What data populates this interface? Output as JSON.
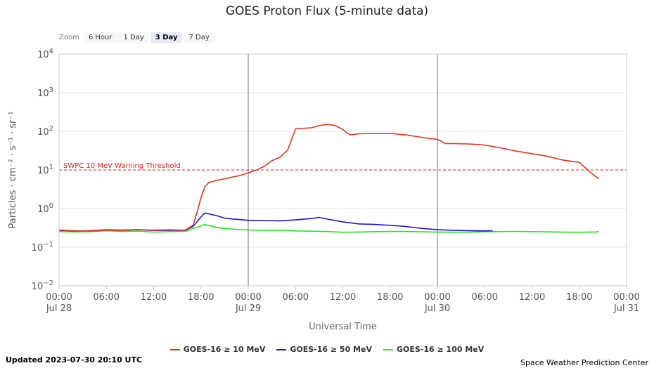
{
  "title": "GOES Proton Flux (5-minute data)",
  "zoom": {
    "label": "Zoom",
    "options": [
      "6 Hour",
      "1 Day",
      "3 Day",
      "7 Day"
    ],
    "selected": "3 Day"
  },
  "footer": {
    "updated": "Updated 2023-07-30 20:10 UTC",
    "credit": "Space Weather Prediction Center"
  },
  "chart_data": {
    "type": "line",
    "title": "GOES Proton Flux (5-minute data)",
    "xlabel": "Universal Time",
    "ylabel": "Particles · cm⁻² · s⁻¹ · sr⁻¹",
    "y_scale": "log",
    "ylim_exponents": [
      -2,
      4
    ],
    "y_ticks": [
      {
        "base": "10",
        "exp": "−2"
      },
      {
        "base": "10",
        "exp": "−1"
      },
      {
        "base": "10",
        "exp": "0"
      },
      {
        "base": "10",
        "exp": "1"
      },
      {
        "base": "10",
        "exp": "2"
      },
      {
        "base": "10",
        "exp": "3"
      },
      {
        "base": "10",
        "exp": "4"
      }
    ],
    "x_range_hours": [
      0,
      72
    ],
    "x_ticks": [
      {
        "hour": 0,
        "label": "00:00",
        "date": "Jul 28"
      },
      {
        "hour": 6,
        "label": "06:00",
        "date": ""
      },
      {
        "hour": 12,
        "label": "12:00",
        "date": ""
      },
      {
        "hour": 18,
        "label": "18:00",
        "date": ""
      },
      {
        "hour": 24,
        "label": "00:00",
        "date": "Jul 29"
      },
      {
        "hour": 30,
        "label": "06:00",
        "date": ""
      },
      {
        "hour": 36,
        "label": "12:00",
        "date": ""
      },
      {
        "hour": 42,
        "label": "18:00",
        "date": ""
      },
      {
        "hour": 48,
        "label": "00:00",
        "date": "Jul 30"
      },
      {
        "hour": 54,
        "label": "06:00",
        "date": ""
      },
      {
        "hour": 60,
        "label": "12:00",
        "date": ""
      },
      {
        "hour": 66,
        "label": "18:00",
        "date": ""
      },
      {
        "hour": 72,
        "label": "00:00",
        "date": "Jul 31"
      }
    ],
    "day_markers_hours": [
      24,
      48
    ],
    "threshold": {
      "label": "SWPC 10 MeV Warning Threshold",
      "value": 10,
      "color": "#e0211c"
    },
    "grid": true,
    "legend_position": "bottom-center",
    "series": [
      {
        "name": "GOES-16 ≥ 10 MeV",
        "color": "#e8321e",
        "x": [
          0,
          2,
          4,
          6,
          8,
          10,
          12,
          14,
          16,
          17,
          17.5,
          18,
          18.5,
          19,
          20,
          21,
          22,
          23,
          24,
          25,
          26,
          27,
          28,
          29,
          30,
          31,
          32,
          33,
          34,
          35,
          36,
          36.5,
          37,
          38,
          40,
          42,
          44,
          46,
          47,
          48,
          49,
          50,
          52,
          54,
          56,
          58,
          60,
          62,
          64,
          66,
          67,
          68,
          68.5
        ],
        "y": [
          0.28,
          0.27,
          0.27,
          0.28,
          0.27,
          0.28,
          0.27,
          0.28,
          0.28,
          0.38,
          0.8,
          1.9,
          3.6,
          4.6,
          5.3,
          5.9,
          6.7,
          7.4,
          8.5,
          9.8,
          12,
          17,
          21,
          33,
          118,
          122,
          123,
          138,
          147,
          140,
          113,
          94,
          83,
          87,
          87,
          86,
          79,
          70,
          66,
          64,
          49,
          48,
          46,
          43,
          37,
          31,
          27,
          23,
          18,
          15.5,
          10,
          6.8,
          6.0
        ]
      },
      {
        "name": "GOES-16 ≥ 50 MeV",
        "color": "#2211d8",
        "x": [
          0,
          2,
          4,
          6,
          8,
          10,
          12,
          14,
          16,
          17,
          17.5,
          18,
          18.5,
          19,
          20,
          21,
          22,
          24,
          26,
          28,
          30,
          32,
          33,
          34,
          36,
          38,
          40,
          42,
          44,
          46,
          48,
          50,
          52,
          54,
          55
        ],
        "y": [
          0.28,
          0.27,
          0.27,
          0.28,
          0.27,
          0.28,
          0.27,
          0.28,
          0.28,
          0.35,
          0.45,
          0.6,
          0.75,
          0.72,
          0.66,
          0.58,
          0.55,
          0.5,
          0.48,
          0.47,
          0.5,
          0.55,
          0.6,
          0.55,
          0.46,
          0.4,
          0.38,
          0.36,
          0.34,
          0.31,
          0.29,
          0.28,
          0.27,
          0.26,
          0.26
        ]
      },
      {
        "name": "GOES-16 ≥ 100 MeV",
        "color": "#1fe817",
        "x": [
          0,
          2,
          4,
          6,
          8,
          10,
          12,
          14,
          16,
          17,
          18,
          18.5,
          19,
          20,
          21,
          22,
          24,
          26,
          28,
          30,
          32,
          34,
          36,
          38,
          40,
          42,
          44,
          46,
          48,
          50,
          52,
          54,
          56,
          58,
          60,
          62,
          64,
          66,
          68,
          68.5
        ],
        "y": [
          0.26,
          0.25,
          0.25,
          0.26,
          0.25,
          0.26,
          0.25,
          0.26,
          0.26,
          0.3,
          0.35,
          0.38,
          0.36,
          0.33,
          0.31,
          0.3,
          0.28,
          0.27,
          0.27,
          0.26,
          0.26,
          0.26,
          0.25,
          0.25,
          0.25,
          0.25,
          0.25,
          0.25,
          0.25,
          0.25,
          0.25,
          0.25,
          0.25,
          0.25,
          0.25,
          0.25,
          0.25,
          0.25,
          0.25,
          0.25
        ]
      }
    ]
  }
}
